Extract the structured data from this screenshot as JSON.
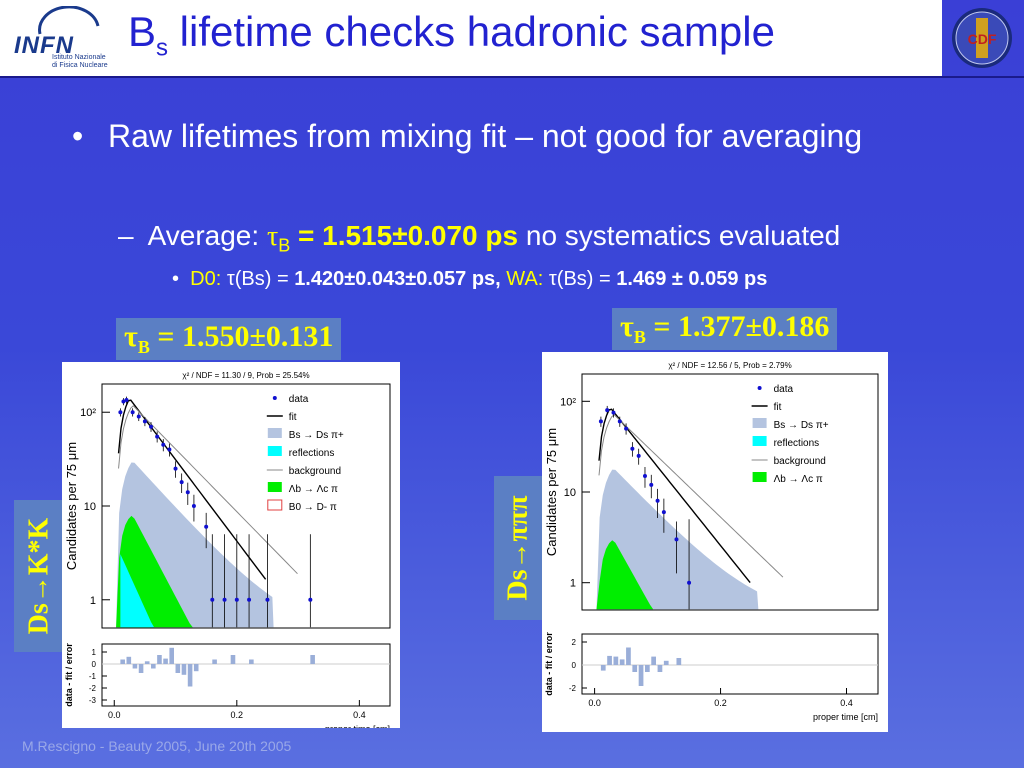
{
  "header": {
    "logo_text": "INFN",
    "logo_sub": "Istituto Nazionale di Fisica Nucleare",
    "title_main": "B",
    "title_sub": "s",
    "title_rest": " lifetime checks hadronic sample",
    "cdf_logo": "CDF"
  },
  "bullets": {
    "b1_dot": "•",
    "b1_text": "Raw lifetimes from mixing fit – not good for averaging",
    "b2_dash": "–",
    "b2_prefix": "Average: ",
    "b2_tau": "τ",
    "b2_tau_sub": "B",
    "b2_value": " = 1.515±0.070 ps",
    "b2_suffix": " no systematics evaluated",
    "b3_dot": "•",
    "b3_d0": "D0:",
    "b3_d0_expr": " τ(Bs) = ",
    "b3_d0_val": "1.420±0.043±0.057 ps,",
    "b3_wa": " WA:",
    "b3_wa_expr": " τ(Bs) = ",
    "b3_wa_val": "1.469 ± 0.059  ps"
  },
  "boxes": {
    "left_tau": "τ",
    "left_tau_sub": "B",
    "left_tau_val": " = 1.550±0.131",
    "right_tau": "τ",
    "right_tau_sub": "B",
    "right_tau_val": " = 1.377±0.186",
    "left_ds": "Ds→K*K",
    "right_ds": "Ds→πππ"
  },
  "footer": "M.Rescigno - Beauty 2005,  June 20th 2005",
  "chart_data": [
    {
      "type": "scatter",
      "title": "χ² / NDF = 11.30 / 9, Prob = 25.54%",
      "xlabel": "proper time [cm]",
      "ylabel": "Candidates per 75 μm",
      "ylabel_residual": "data - fit / error",
      "xlim": [
        -0.02,
        0.45
      ],
      "ylim_log": [
        0.5,
        200
      ],
      "x_ticks": [
        "0.0",
        "0.2",
        "0.4"
      ],
      "y_ticks": [
        "1",
        "10",
        "10²"
      ],
      "residual_ticks": [
        "1",
        "0",
        "-1",
        "-2",
        "-3"
      ],
      "legend": [
        "data",
        "fit",
        "Bs → Ds π+",
        "reflections",
        "background",
        "Λb → Λc π",
        "B0 → D- π"
      ],
      "series": [
        {
          "name": "data",
          "x": [
            0.01,
            0.015,
            0.02,
            0.03,
            0.04,
            0.05,
            0.06,
            0.07,
            0.08,
            0.09,
            0.1,
            0.11,
            0.12,
            0.13,
            0.15,
            0.16,
            0.18,
            0.2,
            0.22,
            0.25,
            0.32
          ],
          "y": [
            100,
            130,
            135,
            100,
            90,
            80,
            70,
            55,
            45,
            40,
            25,
            18,
            14,
            10,
            6,
            1,
            1,
            1,
            1,
            1,
            1
          ]
        }
      ]
    },
    {
      "type": "scatter",
      "title": "χ² / NDF = 12.56 / 5, Prob = 2.79%",
      "xlabel": "proper time [cm]",
      "ylabel": "Candidates per 75 μm",
      "ylabel_residual": "data - fit / error",
      "xlim": [
        -0.02,
        0.45
      ],
      "ylim_log": [
        0.5,
        200
      ],
      "x_ticks": [
        "0.0",
        "0.2",
        "0.4"
      ],
      "y_ticks": [
        "1",
        "10",
        "10²"
      ],
      "residual_ticks": [
        "2",
        "0",
        "-2"
      ],
      "legend": [
        "data",
        "fit",
        "Bs → Ds π+",
        "reflections",
        "background",
        "Λb → Λc π"
      ],
      "series": [
        {
          "name": "data",
          "x": [
            0.01,
            0.02,
            0.03,
            0.04,
            0.05,
            0.06,
            0.07,
            0.08,
            0.09,
            0.1,
            0.11,
            0.13,
            0.15
          ],
          "y": [
            60,
            80,
            75,
            60,
            50,
            30,
            25,
            15,
            12,
            8,
            6,
            3,
            1
          ]
        }
      ]
    }
  ]
}
